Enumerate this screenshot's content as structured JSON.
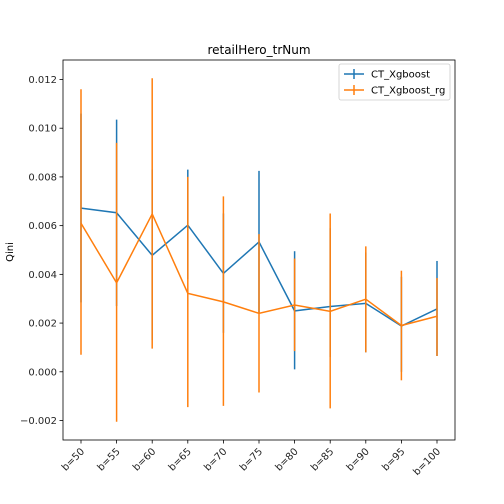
{
  "chart_data": {
    "type": "line",
    "title": "retailHero_trNum",
    "xlabel": "",
    "ylabel": "Qini",
    "categories": [
      "b=50",
      "b=55",
      "b=60",
      "b=65",
      "b=70",
      "b=75",
      "b=80",
      "b=85",
      "b=90",
      "b=95",
      "b=100"
    ],
    "ylim": [
      -0.0028,
      0.0128
    ],
    "yticks": [
      -0.002,
      0.0,
      0.002,
      0.004,
      0.006,
      0.008,
      0.01,
      0.012
    ],
    "ytick_labels": [
      "−0.002",
      "0.000",
      "0.002",
      "0.004",
      "0.006",
      "0.008",
      "0.010",
      "0.012"
    ],
    "grid": false,
    "legend_position": "top-right",
    "series": [
      {
        "name": "CT_Xgboost",
        "color": "#1f77b4",
        "values": [
          0.00672,
          0.00653,
          0.00478,
          0.00602,
          0.00404,
          0.00533,
          0.0025,
          0.00268,
          0.00281,
          0.00188,
          0.00258
        ],
        "err_low": [
          0.00285,
          0.0027,
          0.0013,
          0.0038,
          0.0016,
          0.0024,
          0.0001,
          0.0006,
          0.0008,
          0.0,
          0.00065
        ],
        "err_high": [
          0.0106,
          0.01035,
          0.0083,
          0.0083,
          0.0065,
          0.00825,
          0.00495,
          0.0059,
          0.0049,
          0.0039,
          0.00455
        ]
      },
      {
        "name": "CT_Xgboost_rg",
        "color": "#ff7f0e",
        "values": [
          0.0061,
          0.00365,
          0.00648,
          0.00322,
          0.00287,
          0.0024,
          0.00274,
          0.00248,
          0.00298,
          0.0019,
          0.00228
        ],
        "err_low": [
          0.0007,
          -0.00205,
          0.00095,
          -0.00145,
          -0.0014,
          -0.00085,
          0.00085,
          -0.0015,
          0.0008,
          -0.00035,
          0.00065
        ],
        "err_high": [
          0.0116,
          0.0094,
          0.01205,
          0.008,
          0.0072,
          0.00565,
          0.00465,
          0.0065,
          0.00515,
          0.00415,
          0.00385
        ]
      }
    ]
  }
}
